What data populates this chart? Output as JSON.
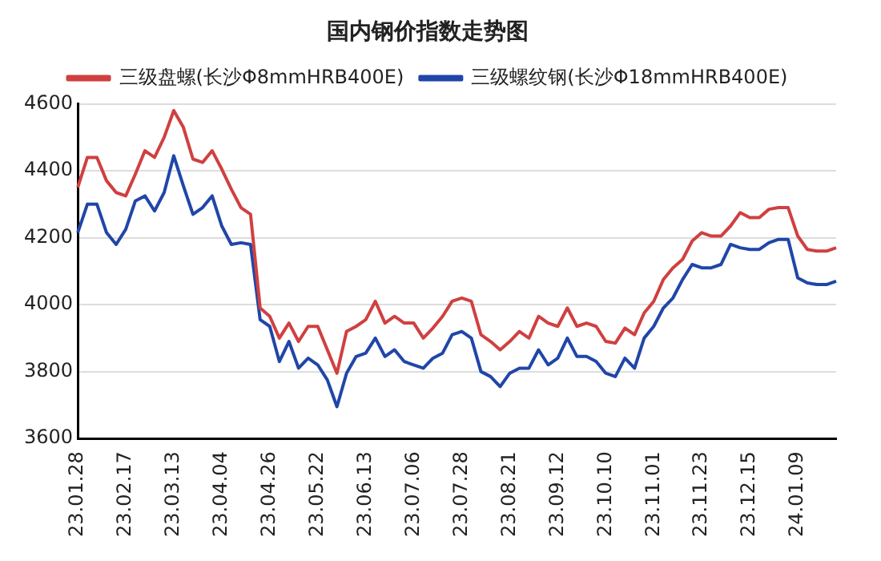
{
  "chart_data": {
    "type": "line",
    "title": "国内钢价指数走势图",
    "categories": [
      "23.01.28",
      null,
      null,
      null,
      null,
      "23.02.17",
      null,
      null,
      null,
      null,
      "23.03.13",
      null,
      null,
      null,
      null,
      "23.04.04",
      null,
      null,
      null,
      null,
      "23.04.26",
      null,
      null,
      null,
      null,
      "23.05.22",
      null,
      null,
      null,
      null,
      "23.06.13",
      null,
      null,
      null,
      null,
      "23.07.06",
      null,
      null,
      null,
      null,
      "23.07.28",
      null,
      null,
      null,
      null,
      "23.08.21",
      null,
      null,
      null,
      null,
      "23.09.12",
      null,
      null,
      null,
      null,
      "23.10.10",
      null,
      null,
      null,
      null,
      "23.11.01",
      null,
      null,
      null,
      null,
      "23.11.23",
      null,
      null,
      null,
      null,
      "23.12.15",
      null,
      null,
      null,
      null,
      "24.01.09",
      null,
      null,
      null,
      null
    ],
    "series": [
      {
        "name": "三级盘螺(长沙Φ8mmHRB400E)",
        "color": "#d04040",
        "values": [
          4350,
          4440,
          4440,
          4370,
          4335,
          4325,
          4390,
          4460,
          4440,
          4500,
          4580,
          4530,
          4435,
          4425,
          4460,
          4405,
          4345,
          4290,
          4270,
          3990,
          3965,
          3900,
          3945,
          3890,
          3935,
          3935,
          3865,
          3795,
          3920,
          3935,
          3955,
          4010,
          3945,
          3965,
          3945,
          3945,
          3900,
          3930,
          3965,
          4010,
          4020,
          4010,
          3910,
          3890,
          3865,
          3890,
          3920,
          3900,
          3965,
          3945,
          3935,
          3990,
          3935,
          3945,
          3935,
          3890,
          3885,
          3930,
          3910,
          3975,
          4010,
          4075,
          4110,
          4135,
          4190,
          4215,
          4205,
          4205,
          4235,
          4275,
          4260,
          4260,
          4285,
          4290,
          4290,
          4205,
          4165,
          4160,
          4160,
          4170
        ]
      },
      {
        "name": "三级螺纹钢(长沙Φ18mmHRB400E)",
        "color": "#2046a8",
        "values": [
          4215,
          4300,
          4300,
          4215,
          4180,
          4225,
          4310,
          4325,
          4280,
          4335,
          4445,
          4355,
          4270,
          4290,
          4325,
          4235,
          4180,
          4185,
          4180,
          3955,
          3935,
          3830,
          3890,
          3810,
          3840,
          3820,
          3775,
          3695,
          3795,
          3845,
          3855,
          3900,
          3845,
          3865,
          3830,
          3820,
          3810,
          3840,
          3855,
          3910,
          3920,
          3900,
          3800,
          3785,
          3755,
          3795,
          3810,
          3810,
          3865,
          3820,
          3840,
          3900,
          3845,
          3845,
          3830,
          3795,
          3785,
          3840,
          3810,
          3900,
          3935,
          3990,
          4020,
          4075,
          4120,
          4110,
          4110,
          4120,
          4180,
          4170,
          4165,
          4165,
          4185,
          4195,
          4195,
          4080,
          4065,
          4060,
          4060,
          4070
        ]
      }
    ],
    "ylim": [
      3600,
      4600
    ],
    "yticks": [
      3600,
      3800,
      4000,
      4200,
      4400,
      4600
    ],
    "grid": "y",
    "legend": "top",
    "marker": "none",
    "line_style": "solid"
  }
}
